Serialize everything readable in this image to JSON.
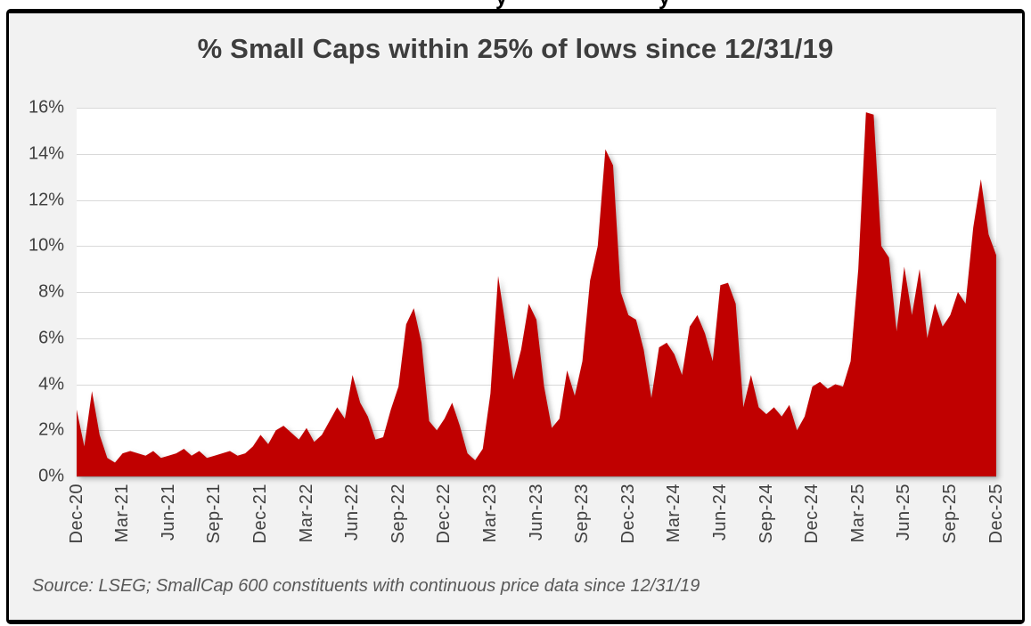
{
  "cropped_top_text_fragments": [
    "y",
    "y"
  ],
  "chart_data": {
    "type": "area",
    "title": "% Small Caps within 25% of lows since 12/31/19",
    "xlabel": "",
    "ylabel": "",
    "ylim": [
      0,
      16
    ],
    "ytick_step": 2,
    "ytick_labels": [
      "0%",
      "2%",
      "4%",
      "6%",
      "8%",
      "10%",
      "12%",
      "14%",
      "16%"
    ],
    "x_tick_rotation": 90,
    "grid": true,
    "legend": false,
    "categories": [
      "Dec-20",
      "Mar-21",
      "Jun-21",
      "Sep-21",
      "Dec-21",
      "Mar-22",
      "Jun-22",
      "Sep-22",
      "Dec-22",
      "Mar-23",
      "Jun-23",
      "Sep-23",
      "Dec-23",
      "Mar-24",
      "Jun-24",
      "Sep-24",
      "Dec-24",
      "Mar-25",
      "Jun-25",
      "Sep-25",
      "Dec-25"
    ],
    "series": [
      {
        "name": "% Small Caps within 25% of lows",
        "color": "#c00000",
        "sampling": "semi-monthly estimates read from plot",
        "values": [
          2.9,
          1.3,
          3.7,
          1.8,
          0.8,
          0.6,
          1.0,
          1.1,
          1.0,
          0.9,
          1.1,
          0.8,
          0.9,
          1.0,
          1.2,
          0.9,
          1.1,
          0.8,
          0.9,
          1.0,
          1.1,
          0.9,
          1.0,
          1.3,
          1.8,
          1.4,
          2.0,
          2.2,
          1.9,
          1.6,
          2.1,
          1.5,
          1.8,
          2.4,
          3.0,
          2.5,
          4.4,
          3.2,
          2.6,
          1.6,
          1.7,
          2.9,
          3.9,
          6.6,
          7.3,
          5.8,
          2.4,
          2.0,
          2.5,
          3.2,
          2.2,
          1.0,
          0.7,
          1.2,
          3.6,
          8.7,
          6.5,
          4.2,
          5.5,
          7.5,
          6.8,
          3.9,
          2.1,
          2.5,
          4.6,
          3.5,
          5.0,
          8.5,
          10.0,
          14.2,
          13.5,
          8.0,
          7.0,
          6.8,
          5.5,
          3.4,
          5.6,
          5.8,
          5.3,
          4.4,
          6.5,
          7.0,
          6.2,
          5.0,
          8.3,
          8.4,
          7.5,
          3.0,
          4.4,
          3.0,
          2.7,
          3.0,
          2.6,
          3.1,
          2.0,
          2.6,
          3.9,
          4.1,
          3.8,
          4.0,
          3.9,
          5.0,
          9.0,
          15.8,
          15.7,
          10.0,
          9.5,
          6.3,
          9.1,
          7.0,
          9.0,
          6.0,
          7.5,
          6.5,
          7.0,
          8.0,
          7.5,
          10.8,
          12.9,
          10.5,
          9.6
        ]
      }
    ]
  },
  "source_note": "Source: LSEG; SmallCap 600 constituents with continuous price data since 12/31/19",
  "colors": {
    "area": "#c00000",
    "grid": "#d9d9d9",
    "axis_line": "#bfbfbf",
    "axis_text": "#404040",
    "title_text": "#3d3d3d",
    "source_text": "#595959",
    "card_bg": "#f2f2f2",
    "plot_bg": "#ffffff",
    "border": "#000000"
  }
}
